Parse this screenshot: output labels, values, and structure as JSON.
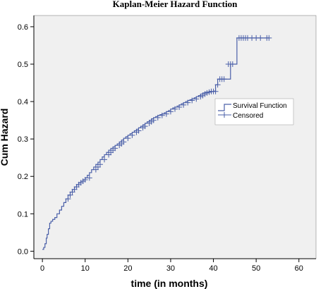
{
  "chart_data": {
    "type": "line",
    "title": "Kaplan-Meier Hazard Function",
    "xlabel": "time (in months)",
    "ylabel": "Cum Hazard",
    "xlim": [
      -2,
      64
    ],
    "ylim": [
      -0.02,
      0.63
    ],
    "xticks": [
      0,
      10,
      20,
      30,
      40,
      50,
      60
    ],
    "yticks": [
      0.0,
      0.1,
      0.2,
      0.3,
      0.4,
      0.5,
      0.6
    ],
    "ytick_labels": [
      "0.0",
      "0.1",
      "0.2",
      "0.3",
      "0.4",
      "0.5",
      "0.6"
    ],
    "grid": false,
    "legend_position": "right",
    "colors": {
      "series": "#4a5fa8",
      "plot_bg": "#f0f0f0",
      "axis": "#000000"
    },
    "series": [
      {
        "name": "Survival Function",
        "kind": "step",
        "x": [
          0,
          0.3,
          0.6,
          0.9,
          1.1,
          1.4,
          1.7,
          2.0,
          2.4,
          2.9,
          3.4,
          4.0,
          4.5,
          5.0,
          5.5,
          6.0,
          6.5,
          7.0,
          7.5,
          8.0,
          8.5,
          9.0,
          9.5,
          10.0,
          10.5,
          11.0,
          11.5,
          12.0,
          12.5,
          13.0,
          13.5,
          14.0,
          14.5,
          15.0,
          15.5,
          16.0,
          16.5,
          17.0,
          17.5,
          18.0,
          18.5,
          19.0,
          19.5,
          20.0,
          20.5,
          21.0,
          21.5,
          22.0,
          22.5,
          23.0,
          23.5,
          24.0,
          24.5,
          25.0,
          25.5,
          26.0,
          26.5,
          27.0,
          27.5,
          28.0,
          28.5,
          29.0,
          29.5,
          30.0,
          30.5,
          31.0,
          31.5,
          32.0,
          32.5,
          33.0,
          33.5,
          34.0,
          34.5,
          35.0,
          35.5,
          36.0,
          36.5,
          37.0,
          37.5,
          38.0,
          39.0,
          40.0,
          40.5,
          41.0,
          43.0,
          44.0,
          45.5,
          53.0
        ],
        "y": [
          0.005,
          0.01,
          0.02,
          0.035,
          0.045,
          0.06,
          0.075,
          0.08,
          0.085,
          0.09,
          0.1,
          0.11,
          0.12,
          0.13,
          0.14,
          0.15,
          0.158,
          0.165,
          0.172,
          0.178,
          0.183,
          0.187,
          0.191,
          0.196,
          0.203,
          0.21,
          0.218,
          0.225,
          0.232,
          0.238,
          0.245,
          0.252,
          0.258,
          0.264,
          0.27,
          0.275,
          0.279,
          0.283,
          0.287,
          0.292,
          0.297,
          0.302,
          0.306,
          0.31,
          0.314,
          0.318,
          0.322,
          0.326,
          0.33,
          0.334,
          0.338,
          0.342,
          0.346,
          0.35,
          0.354,
          0.357,
          0.36,
          0.363,
          0.365,
          0.367,
          0.37,
          0.373,
          0.376,
          0.38,
          0.383,
          0.385,
          0.388,
          0.391,
          0.394,
          0.397,
          0.4,
          0.403,
          0.405,
          0.407,
          0.41,
          0.413,
          0.416,
          0.42,
          0.423,
          0.425,
          0.427,
          0.428,
          0.445,
          0.46,
          0.46,
          0.5,
          0.57,
          0.57
        ]
      },
      {
        "name": "Censored",
        "kind": "markers",
        "marker": "plus",
        "x": [
          6.0,
          6.5,
          7.0,
          7.5,
          8.0,
          8.5,
          9.0,
          9.5,
          10.0,
          11.0,
          12.5,
          13.0,
          13.5,
          14.5,
          15.5,
          16.0,
          16.5,
          17.0,
          18.0,
          18.5,
          19.0,
          20.0,
          21.0,
          22.0,
          22.5,
          23.5,
          24.0,
          25.0,
          25.5,
          26.0,
          27.0,
          28.0,
          29.0,
          30.0,
          31.0,
          32.0,
          33.0,
          34.0,
          35.0,
          36.0,
          37.0,
          37.5,
          38.0,
          38.5,
          39.0,
          39.5,
          40.0,
          40.5,
          41.0,
          41.5,
          42.0,
          42.5,
          43.5,
          44.0,
          44.5,
          46.0,
          46.5,
          47.0,
          47.5,
          48.0,
          49.0,
          50.0,
          51.0,
          52.5,
          53.0
        ],
        "y": [
          0.14,
          0.15,
          0.158,
          0.165,
          0.172,
          0.178,
          0.183,
          0.187,
          0.191,
          0.196,
          0.218,
          0.225,
          0.232,
          0.245,
          0.258,
          0.264,
          0.27,
          0.275,
          0.283,
          0.287,
          0.292,
          0.302,
          0.31,
          0.318,
          0.322,
          0.33,
          0.334,
          0.342,
          0.346,
          0.35,
          0.357,
          0.363,
          0.367,
          0.373,
          0.38,
          0.385,
          0.391,
          0.397,
          0.403,
          0.407,
          0.413,
          0.416,
          0.42,
          0.423,
          0.425,
          0.427,
          0.427,
          0.427,
          0.445,
          0.46,
          0.46,
          0.46,
          0.5,
          0.5,
          0.5,
          0.57,
          0.57,
          0.57,
          0.57,
          0.57,
          0.57,
          0.57,
          0.57,
          0.57,
          0.57
        ]
      }
    ]
  }
}
